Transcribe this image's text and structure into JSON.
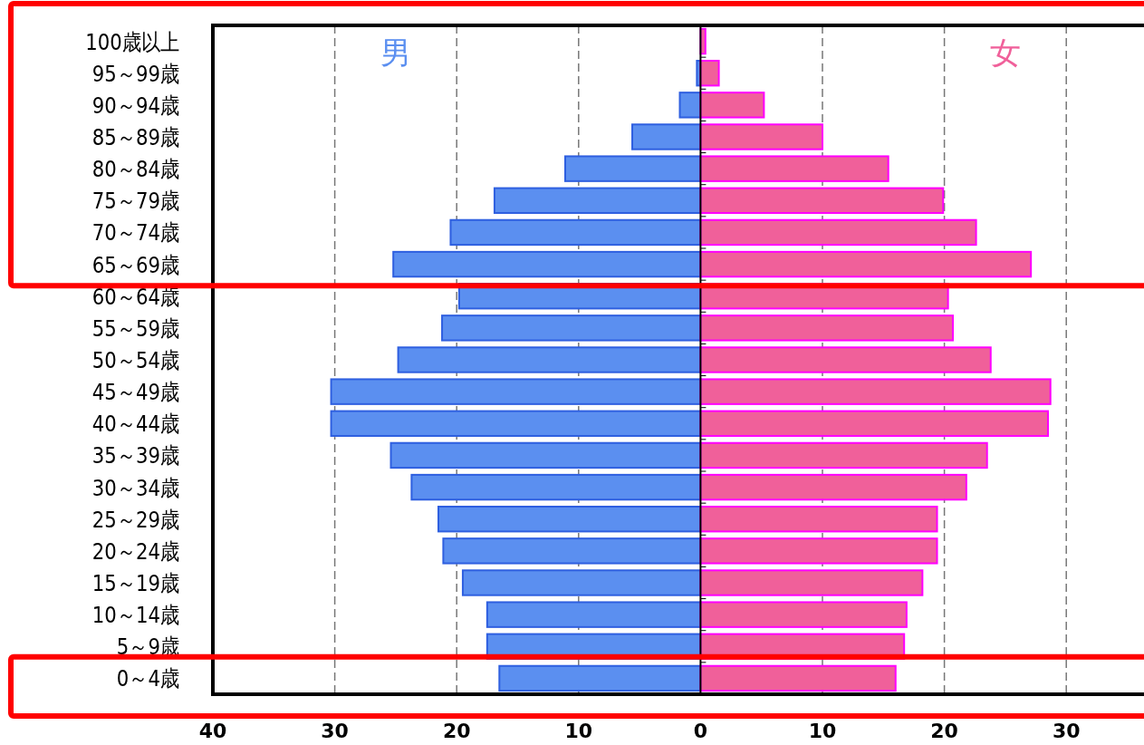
{
  "chart_data": {
    "type": "bar",
    "orientation": "horizontal",
    "stacked": true,
    "categories": [
      "100歳以上",
      "95～99歳",
      "90～94歳",
      "85～89歳",
      "80～84歳",
      "75～79歳",
      "70～74歳",
      "65～69歳",
      "60～64歳",
      "55～59歳",
      "50～54歳",
      "45～49歳",
      "40～44歳",
      "35～39歳",
      "30～34歳",
      "25～29歳",
      "20～24歳",
      "15～19歳",
      "10～14歳",
      "5～9歳",
      "0～4歳"
    ],
    "series": [
      {
        "name": "男",
        "color": "#5b8ff0",
        "values": [
          0,
          -0.3,
          -1.7,
          -5.6,
          -11.1,
          -16.9,
          -20.5,
          -25.2,
          -19.8,
          -21.2,
          -24.8,
          -30.3,
          -30.3,
          -25.4,
          -23.7,
          -21.5,
          -21.1,
          -19.5,
          -17.5,
          -17.5,
          -16.5
        ]
      },
      {
        "name": "女",
        "color": "#f0609a",
        "values": [
          0.4,
          1.5,
          5.2,
          10.0,
          15.4,
          19.9,
          22.6,
          27.1,
          20.3,
          20.7,
          23.8,
          28.7,
          28.5,
          23.5,
          21.8,
          19.4,
          19.4,
          18.2,
          16.9,
          16.7,
          16.0
        ]
      }
    ],
    "xlim": [
      -40,
      36.3
    ],
    "xticks": [
      {
        "value": -40,
        "label": "40"
      },
      {
        "value": -30,
        "label": "30"
      },
      {
        "value": -20,
        "label": "20"
      },
      {
        "value": -10,
        "label": "10"
      },
      0,
      10,
      20,
      30
    ],
    "grid": "x"
  }
}
